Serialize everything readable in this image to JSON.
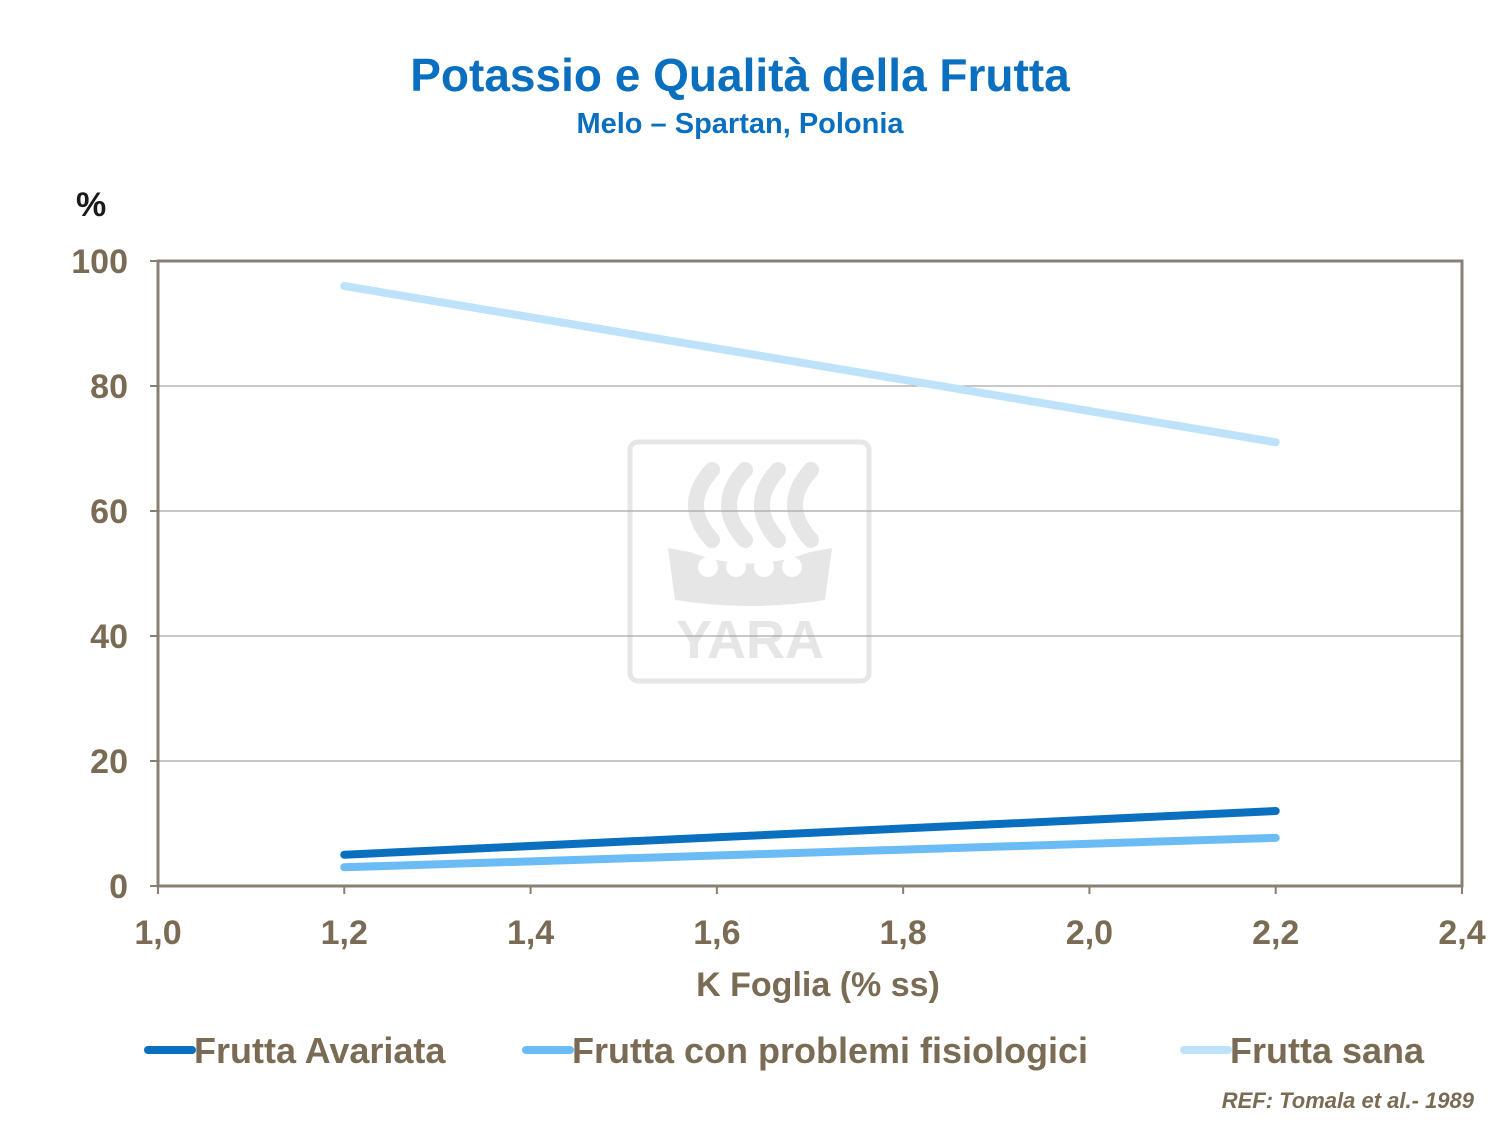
{
  "header": {
    "title": "Potassio e Qualità della Frutta",
    "subtitle": "Melo – Spartan, Polonia"
  },
  "watermark": {
    "text": "YARA",
    "icon": "yara-viking-ship-logo",
    "color": "#e6e6e6"
  },
  "reference": "REF: Tomala  et al.-  1989",
  "colors": {
    "title": "#0a6fbe",
    "axis_text": "#7a6b55",
    "plot_border": "#8a7f73",
    "grid": "#a6a6a6"
  },
  "chart_data": {
    "type": "line",
    "title": "Potassio e Qualità della Frutta",
    "subtitle": "Melo – Spartan, Polonia",
    "xlabel": "K Foglia (% ss)",
    "ylabel": "%",
    "xlim": [
      1.0,
      2.4
    ],
    "ylim": [
      0,
      100
    ],
    "x_ticks": [
      "1,0",
      "1,2",
      "1,4",
      "1,6",
      "1,8",
      "2,0",
      "2,2",
      "2,4"
    ],
    "x_tick_values": [
      1.0,
      1.2,
      1.4,
      1.6,
      1.8,
      2.0,
      2.2,
      2.4
    ],
    "y_ticks": [
      "0",
      "20",
      "40",
      "60",
      "80",
      "100"
    ],
    "y_tick_values": [
      0,
      20,
      40,
      60,
      80,
      100
    ],
    "grid": "horizontal",
    "legend_position": "bottom",
    "series": [
      {
        "name": "Frutta Avariata",
        "color": "#0b6fbf",
        "x": [
          1.2,
          2.2
        ],
        "values": [
          5,
          12
        ]
      },
      {
        "name": "Frutta con problemi fisiologici",
        "color": "#6bbcf5",
        "x": [
          1.2,
          2.2
        ],
        "values": [
          3,
          7.7
        ]
      },
      {
        "name": "Frutta sana",
        "color": "#bfe2fb",
        "x": [
          1.2,
          2.2
        ],
        "values": [
          96,
          71
        ]
      }
    ]
  }
}
